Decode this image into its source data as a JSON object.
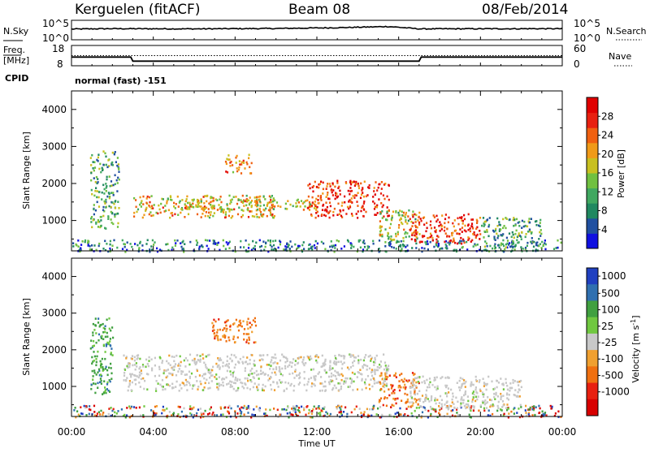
{
  "header": {
    "radar": "Kerguelen (fitACF)",
    "beam": "Beam 08",
    "date": "08/Feb/2014"
  },
  "noise_panel": {
    "left_label": "N.Sky",
    "right_label": "N.Search",
    "left_ticks": [
      "10^5",
      "10^0"
    ],
    "right_ticks": [
      "10^5",
      "10^0"
    ]
  },
  "freq_panel": {
    "left_label_1": "Freq.",
    "left_label_2": "[MHz]",
    "right_label": "Nave",
    "left_ticks": [
      "18",
      "8"
    ],
    "right_ticks": [
      "60",
      "0"
    ],
    "cpid_label": "CPID",
    "cpid_value": "normal (fast) -151"
  },
  "time_axis": {
    "ticks": [
      "00:00",
      "04:00",
      "08:00",
      "12:00",
      "16:00",
      "20:00",
      "00:00"
    ],
    "xlabel": "Time UT"
  },
  "chart_data": [
    {
      "type": "line",
      "name_label": "N.Sky",
      "x_range_hours": [
        0,
        24
      ],
      "log_y": true,
      "ylim_label": [
        "10^0",
        "10^5"
      ],
      "description_level_fraction_by_hour": [
        [
          0,
          0.55
        ],
        [
          2,
          0.57
        ],
        [
          6,
          0.56
        ],
        [
          10,
          0.58
        ],
        [
          13,
          0.62
        ],
        [
          15.5,
          0.68
        ],
        [
          17,
          0.56
        ],
        [
          24,
          0.57
        ]
      ]
    },
    {
      "type": "line",
      "series": [
        {
          "name": "Freq.",
          "unit": "MHz",
          "points": [
            [
              0,
              12.3
            ],
            [
              2.9,
              12.3
            ],
            [
              3.0,
              10.3
            ],
            [
              17.0,
              10.3
            ],
            [
              17.1,
              12.3
            ],
            [
              24,
              12.3
            ]
          ]
        },
        {
          "name": "Nave",
          "points": [
            [
              0,
              30
            ],
            [
              24,
              30
            ]
          ]
        }
      ],
      "ylim": [
        8,
        18
      ],
      "ylim_right": [
        0,
        60
      ]
    },
    {
      "type": "heatmap",
      "ylabel": "Slant Range [km]",
      "ylim": [
        180,
        4500
      ],
      "yticks": [
        1000,
        2000,
        3000,
        4000
      ],
      "colorbar": {
        "label": "Power [dB]",
        "range": [
          0,
          32
        ],
        "ticks": [
          4,
          8,
          12,
          16,
          20,
          24,
          28
        ],
        "colors": [
          "#1010e0",
          "#2050a0",
          "#208860",
          "#40a860",
          "#70c040",
          "#c8c020",
          "#f09a18",
          "#f06010",
          "#e82010",
          "#e00000"
        ]
      },
      "echo_regions": [
        {
          "t0": 0.0,
          "t1": 24.0,
          "r0": 180,
          "r1": 500,
          "level": 0.25
        },
        {
          "t0": 0.9,
          "t1": 2.3,
          "r0": 800,
          "r1": 2900,
          "level": 0.35
        },
        {
          "t0": 3.0,
          "t1": 10.0,
          "r0": 1100,
          "r1": 1700,
          "level": 0.6
        },
        {
          "t0": 7.5,
          "t1": 8.8,
          "r0": 2300,
          "r1": 2800,
          "level": 0.7
        },
        {
          "t0": 5.0,
          "t1": 12.0,
          "r0": 1300,
          "r1": 1600,
          "level": 0.55
        },
        {
          "t0": 11.5,
          "t1": 15.5,
          "r0": 1100,
          "r1": 2100,
          "level": 0.85
        },
        {
          "t0": 15.0,
          "t1": 17.0,
          "r0": 500,
          "r1": 1300,
          "level": 0.5
        },
        {
          "t0": 16.5,
          "t1": 20.0,
          "r0": 400,
          "r1": 1200,
          "level": 0.85
        },
        {
          "t0": 20.0,
          "t1": 23.0,
          "r0": 300,
          "r1": 1100,
          "level": 0.35
        }
      ]
    },
    {
      "type": "heatmap",
      "ylabel": "Slant Range [km]",
      "ylim": [
        180,
        4500
      ],
      "yticks": [
        1000,
        2000,
        3000,
        4000
      ],
      "colorbar": {
        "label": "Velocity [m s^-1]",
        "ticks": [
          "1000",
          "500",
          "100",
          "25",
          "-25",
          "-100",
          "-500",
          "-1000"
        ],
        "colors": [
          "#2040c0",
          "#3070b0",
          "#40a040",
          "#70c840",
          "#c8c8c8",
          "#f0a030",
          "#f07010",
          "#e82010",
          "#d80000"
        ]
      },
      "echo_regions": [
        {
          "t0": 0.0,
          "t1": 24.0,
          "r0": 180,
          "r1": 500,
          "kind": "mixed"
        },
        {
          "t0": 0.9,
          "t1": 2.0,
          "r0": 800,
          "r1": 2900,
          "kind": "positive"
        },
        {
          "t0": 6.8,
          "t1": 9.0,
          "r0": 2200,
          "r1": 2900,
          "kind": "negative"
        },
        {
          "t0": 2.5,
          "t1": 15.5,
          "r0": 900,
          "r1": 1900,
          "kind": "low"
        },
        {
          "t0": 15.0,
          "t1": 17.0,
          "r0": 500,
          "r1": 1400,
          "kind": "negative"
        },
        {
          "t0": 16.5,
          "t1": 22.0,
          "r0": 400,
          "r1": 1300,
          "kind": "low"
        }
      ]
    }
  ]
}
